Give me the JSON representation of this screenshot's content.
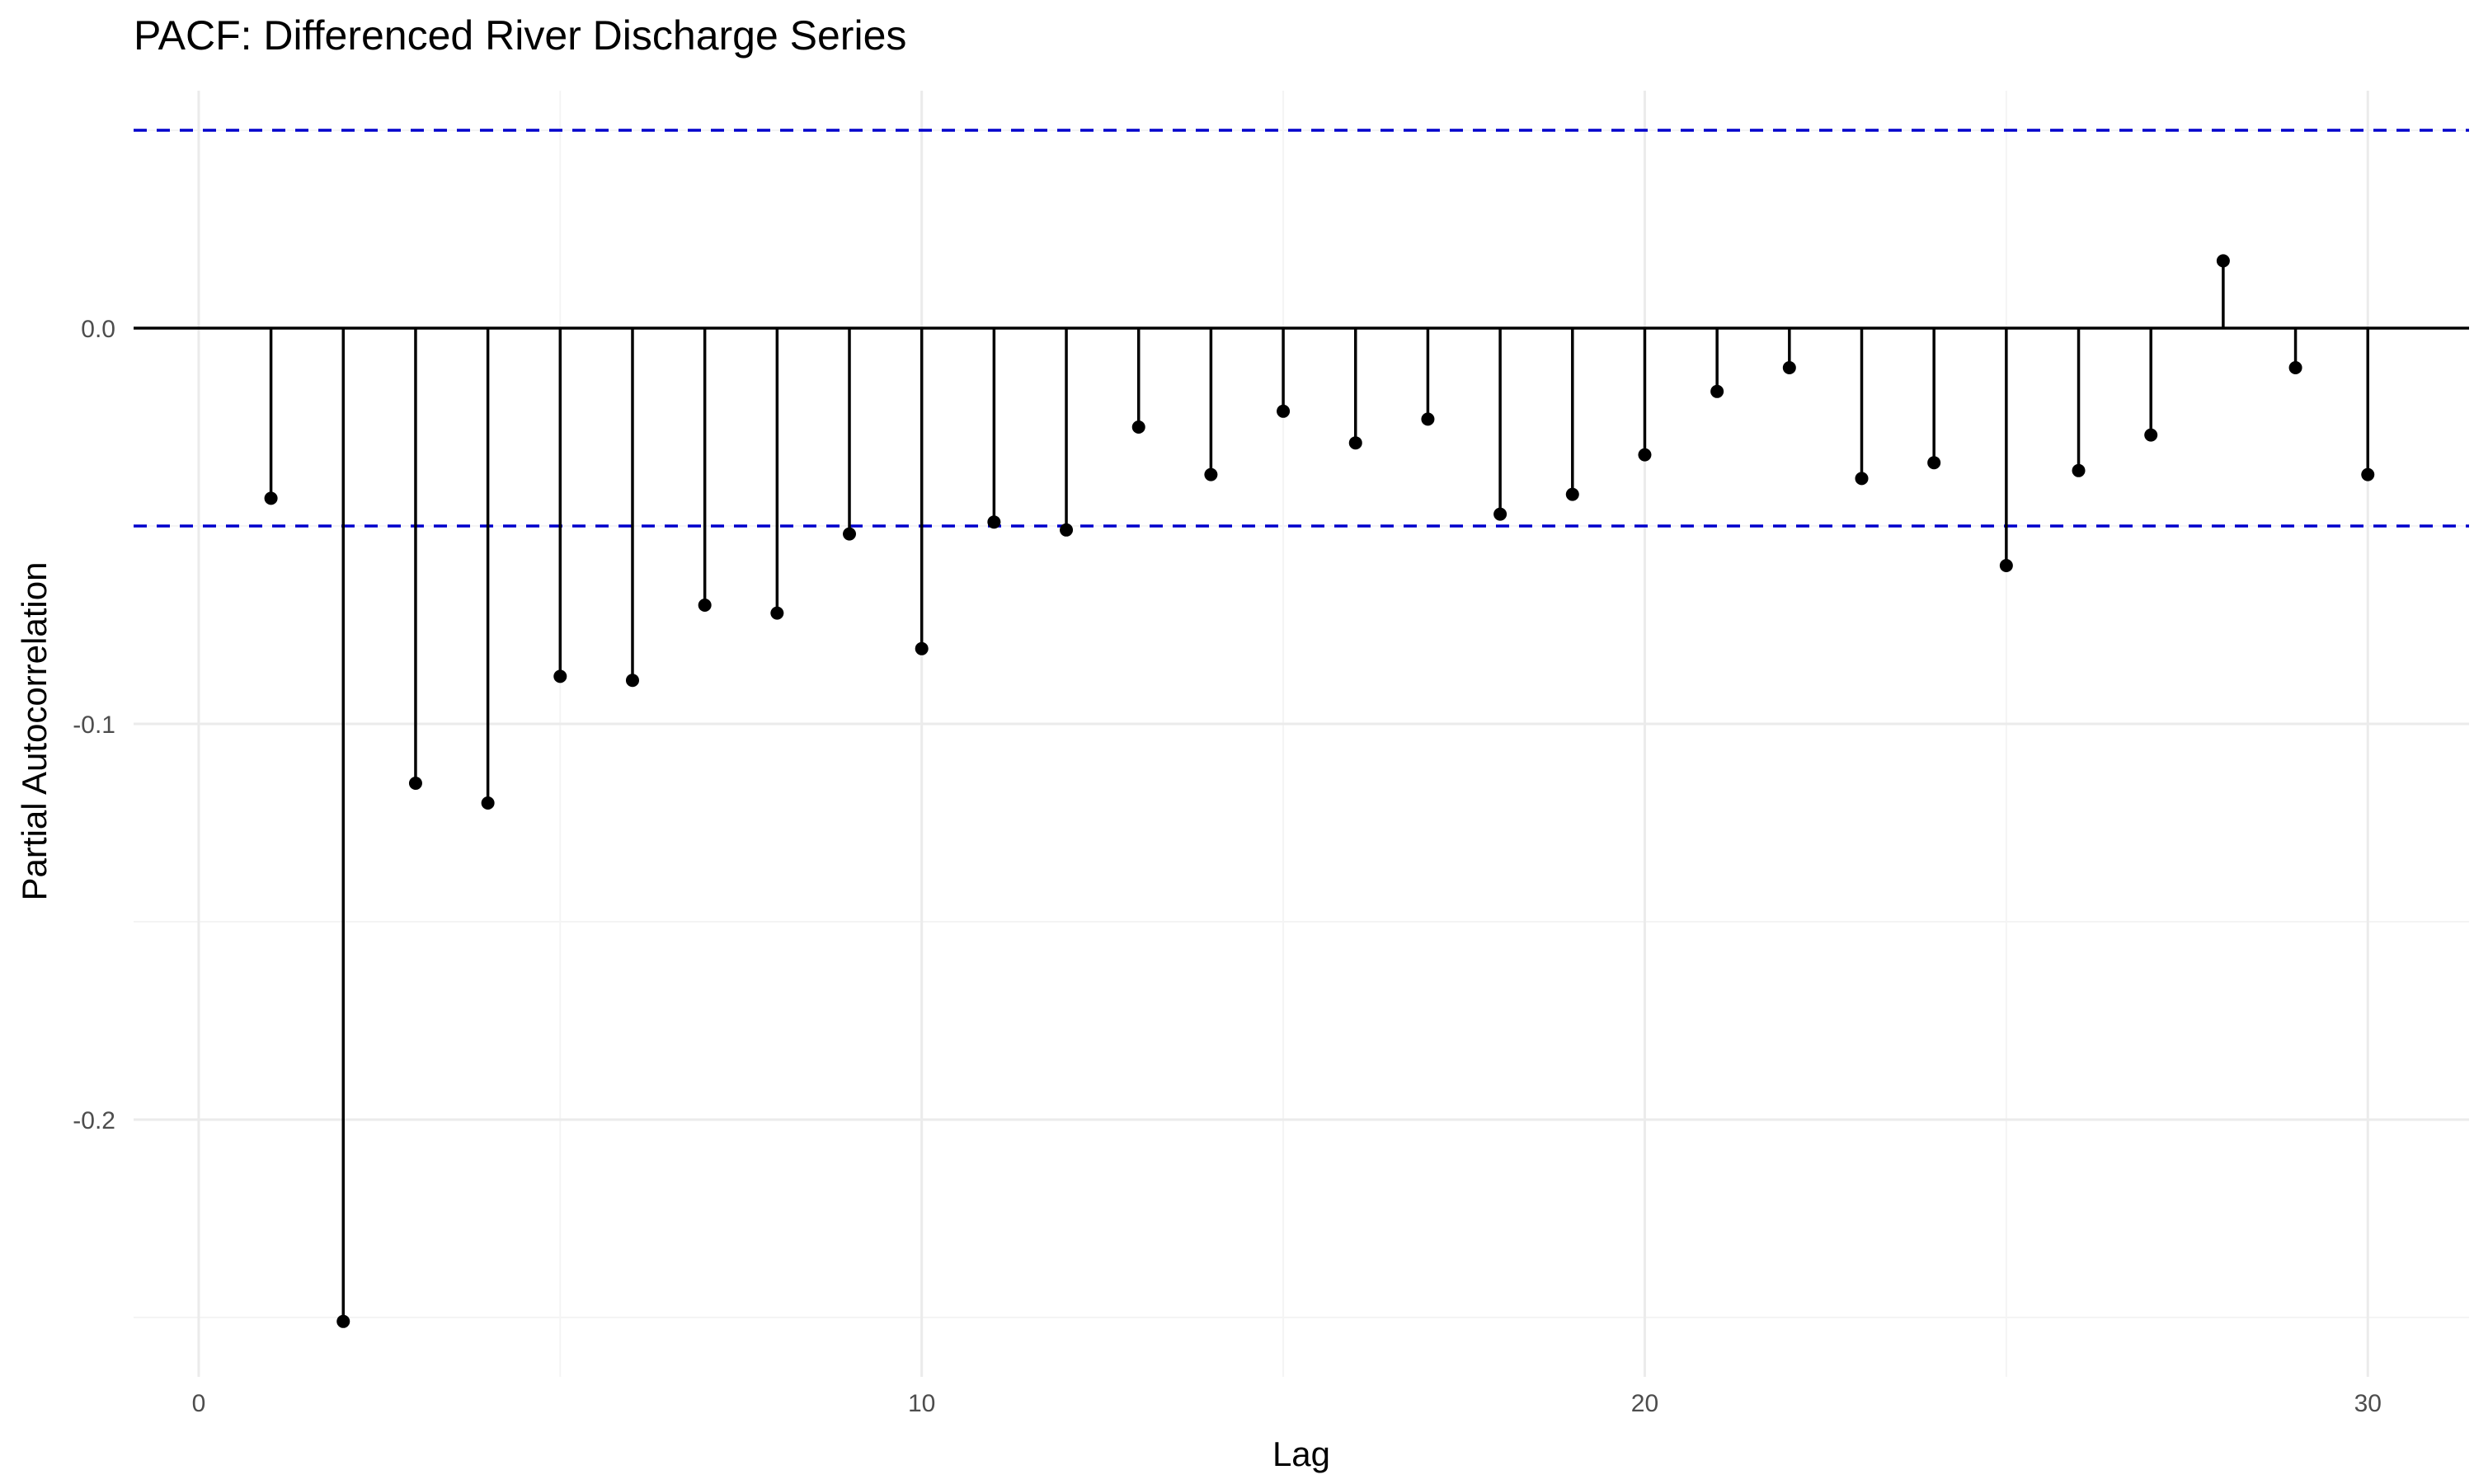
{
  "chart_data": {
    "type": "scatter",
    "title": "PACF: Differenced River Discharge Series",
    "xlabel": "Lag",
    "ylabel": "Partial Autocorrelation",
    "xlim": [
      -0.9,
      31.4
    ],
    "ylim": [
      -0.265,
      0.06
    ],
    "x_ticks": [
      0,
      10,
      20,
      30
    ],
    "x_tick_labels": [
      "0",
      "10",
      "20",
      "30"
    ],
    "y_ticks": [
      -0.2,
      -0.1,
      0.0
    ],
    "y_tick_labels": [
      "-0.2",
      "-0.1",
      "0.0"
    ],
    "grid": true,
    "confidence_bounds": [
      0.05,
      -0.05
    ],
    "lags": [
      1,
      2,
      3,
      4,
      5,
      6,
      7,
      8,
      9,
      10,
      11,
      12,
      13,
      14,
      15,
      16,
      17,
      18,
      19,
      20,
      21,
      22,
      23,
      24,
      25,
      26,
      27,
      28,
      29,
      30
    ],
    "values": [
      -0.043,
      -0.251,
      -0.115,
      -0.12,
      -0.088,
      -0.089,
      -0.07,
      -0.072,
      -0.052,
      -0.081,
      -0.049,
      -0.051,
      -0.025,
      -0.037,
      -0.021,
      -0.029,
      -0.023,
      -0.047,
      -0.042,
      -0.032,
      -0.016,
      -0.01,
      -0.038,
      -0.034,
      -0.06,
      -0.036,
      -0.027,
      0.017,
      -0.01,
      -0.037
    ],
    "colors": {
      "stem": "#000000",
      "confidence": "#0000cc",
      "grid": "#ebebeb"
    }
  }
}
